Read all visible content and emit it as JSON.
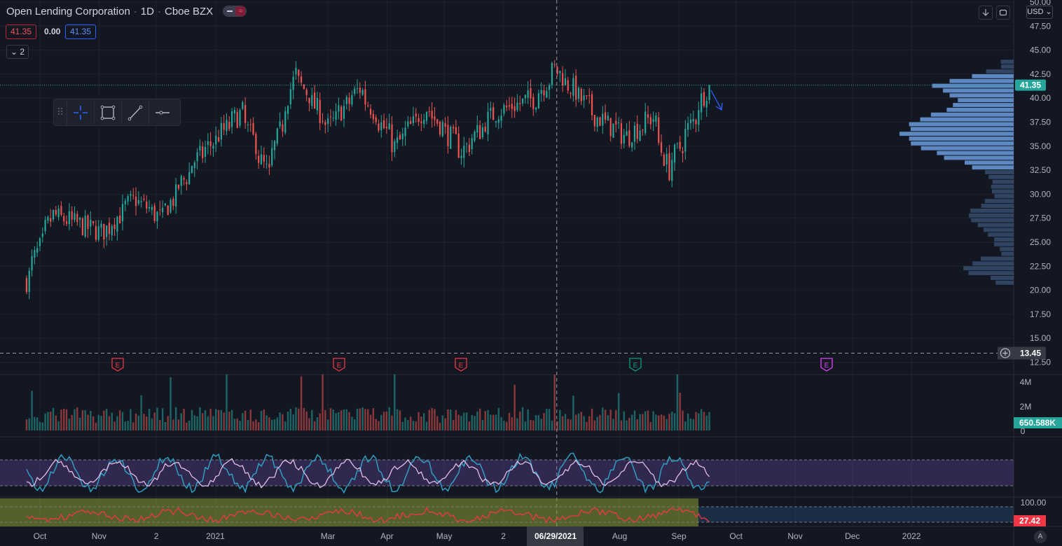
{
  "header": {
    "symbol_name": "Open Lending Corporation",
    "interval": "1D",
    "exchange": "Cboe BZX",
    "price_box_1": "41.35",
    "change": "0.00",
    "price_box_2": "41.35",
    "indicators_toggle": "2"
  },
  "toolbar": {
    "tools": [
      "crosshair-icon",
      "rectangle-icon",
      "trend-line-icon",
      "horizontal-ray-icon"
    ]
  },
  "top_right": {
    "currency": "USD",
    "buttons": [
      "download-arrow-icon",
      "fullscreen-icon"
    ]
  },
  "price_axis": {
    "ticks": [
      "50.00",
      "47.50",
      "45.00",
      "42.50",
      "40.00",
      "37.50",
      "35.00",
      "32.50",
      "30.00",
      "27.50",
      "25.00",
      "22.50",
      "20.00",
      "17.50",
      "15.00",
      "12.50"
    ],
    "last_price_label": "41.35",
    "crosshair_price_label": "13.45"
  },
  "volume_axis": {
    "ticks": [
      "4M",
      "2M",
      "0"
    ],
    "last_volume_label": "650.588K"
  },
  "lower_axis": {
    "tick": "100.00",
    "last_value_label": "27.42"
  },
  "time_axis": {
    "labels": [
      "Oct",
      "Nov",
      "2",
      "2021",
      "Mar",
      "Apr",
      "May",
      "2",
      "Aug",
      "Sep",
      "Oct",
      "Nov",
      "Dec",
      "2022"
    ],
    "crosshair_date": "06/29/2021",
    "auto_scale": "A"
  },
  "earnings_markers": [
    {
      "label": "E",
      "color": "#f23645"
    },
    {
      "label": "E",
      "color": "#f23645"
    },
    {
      "label": "E",
      "color": "#f23645"
    },
    {
      "label": "E",
      "color": "#089981"
    },
    {
      "label": "E",
      "color": "#e040fb"
    }
  ],
  "colors": {
    "background": "#131722",
    "up": "#26a69a",
    "down": "#ef5350",
    "volume_profile": "#6b9cde",
    "accent": "#2962ff"
  },
  "chart_data": {
    "type": "candlestick",
    "x_range": [
      "2020-09",
      "2022-01"
    ],
    "ylim": [
      12.5,
      50
    ],
    "last_close": 41.35,
    "crosshair_date": "06/29/2021",
    "crosshair_price": 13.45,
    "last_volume": "650.588K",
    "indicator_last_value": 27.42,
    "anchors": [
      {
        "date": "2020-09-24",
        "close": 21.0
      },
      {
        "date": "2020-10-08",
        "close": 27.8
      },
      {
        "date": "2020-11-03",
        "close": 26.0
      },
      {
        "date": "2020-11-20",
        "close": 29.5
      },
      {
        "date": "2020-12-04",
        "close": 27.5
      },
      {
        "date": "2020-12-22",
        "close": 33.5
      },
      {
        "date": "2021-01-15",
        "close": 38.5
      },
      {
        "date": "2021-01-29",
        "close": 32.0
      },
      {
        "date": "2021-02-12",
        "close": 42.5
      },
      {
        "date": "2021-03-02",
        "close": 37.0
      },
      {
        "date": "2021-03-18",
        "close": 41.0
      },
      {
        "date": "2021-04-06",
        "close": 35.0
      },
      {
        "date": "2021-04-22",
        "close": 39.0
      },
      {
        "date": "2021-05-11",
        "close": 34.5
      },
      {
        "date": "2021-05-28",
        "close": 38.5
      },
      {
        "date": "2021-06-18",
        "close": 40.0
      },
      {
        "date": "2021-06-29",
        "close": 43.0
      },
      {
        "date": "2021-07-21",
        "close": 38.0
      },
      {
        "date": "2021-08-05",
        "close": 36.0
      },
      {
        "date": "2021-08-19",
        "close": 38.0
      },
      {
        "date": "2021-08-27",
        "close": 32.5
      },
      {
        "date": "2021-09-10",
        "close": 38.0
      },
      {
        "date": "2021-09-17",
        "close": 41.35
      }
    ]
  }
}
